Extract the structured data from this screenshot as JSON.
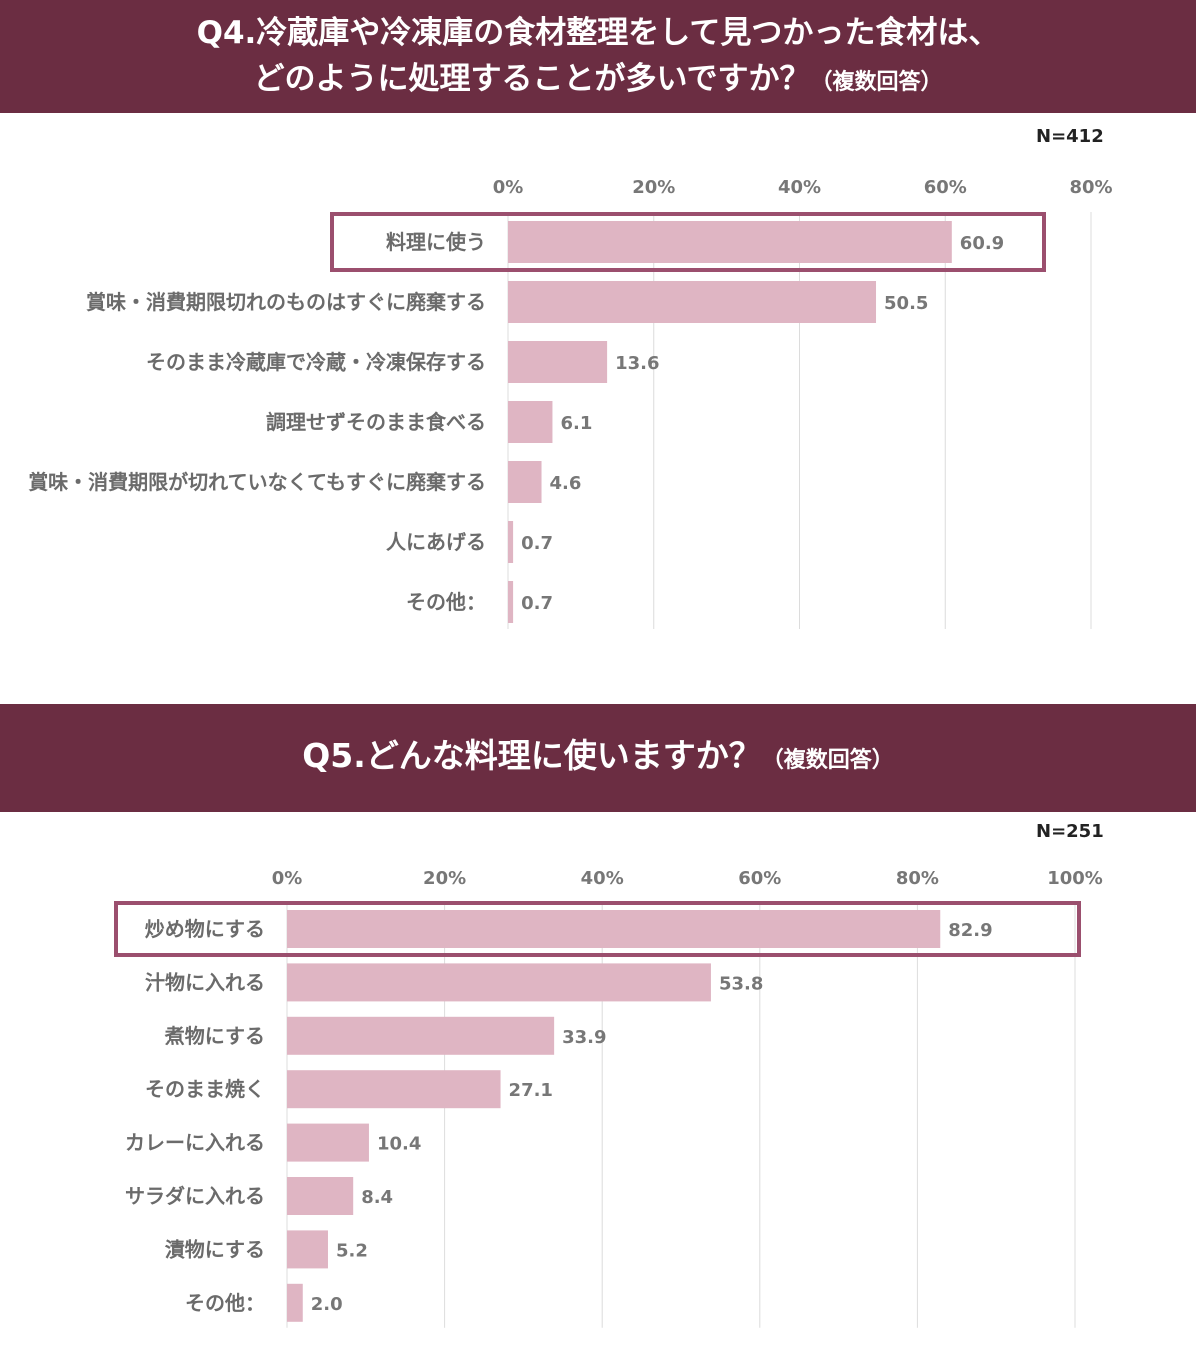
{
  "q4": {
    "title_line1": "Q4.冷蔵庫や冷凍庫の食材整理をして見つかった食材は、",
    "title_line2": "どのように処理することが多いですか？",
    "title_note": "（複数回答）",
    "n_label": "N=412"
  },
  "q5": {
    "title": "Q5.どんな料理に使いますか？",
    "title_note": "（複数回答）",
    "n_label": "N=251"
  },
  "colors": {
    "banner": "#6b2d42",
    "bar": "#dfb5c3",
    "highlight": "#9b4f6e"
  },
  "chart_data": [
    {
      "type": "bar",
      "orientation": "horizontal",
      "title": "Q4.冷蔵庫や冷凍庫の食材整理をして見つかった食材は、どのように処理することが多いですか？（複数回答）",
      "xlim": [
        0,
        80
      ],
      "ticks": [
        "0%",
        "20%",
        "40%",
        "60%",
        "80%"
      ],
      "categories": [
        "料理に使う",
        "賞味・消費期限切れのものはすぐに廃棄する",
        "そのまま冷蔵庫で冷蔵・冷凍保存する",
        "調理せずそのまま食べる",
        "賞味・消費期限が切れていなくてもすぐに廃棄する",
        "人にあげる",
        "その他："
      ],
      "values": [
        60.9,
        50.5,
        13.6,
        6.1,
        4.6,
        0.7,
        0.7
      ],
      "value_labels": [
        "60.9",
        "50.5",
        "13.6",
        "6.1",
        "4.6",
        "0.7",
        "0.7"
      ],
      "highlighted": "料理に使う",
      "grid": true
    },
    {
      "type": "bar",
      "orientation": "horizontal",
      "title": "Q5.どんな料理に使いますか？（複数回答）",
      "xlim": [
        0,
        100
      ],
      "ticks": [
        "0%",
        "20%",
        "40%",
        "60%",
        "80%",
        "100%"
      ],
      "categories": [
        "炒め物にする",
        "汁物に入れる",
        "煮物にする",
        "そのまま焼く",
        "カレーに入れる",
        "サラダに入れる",
        "漬物にする",
        "その他："
      ],
      "values": [
        82.9,
        53.8,
        33.9,
        27.1,
        10.4,
        8.4,
        5.2,
        2.0
      ],
      "value_labels": [
        "82.9",
        "53.8",
        "33.9",
        "27.1",
        "10.4",
        "8.4",
        "5.2",
        "2.0"
      ],
      "highlighted": "炒め物にする",
      "grid": true
    }
  ]
}
